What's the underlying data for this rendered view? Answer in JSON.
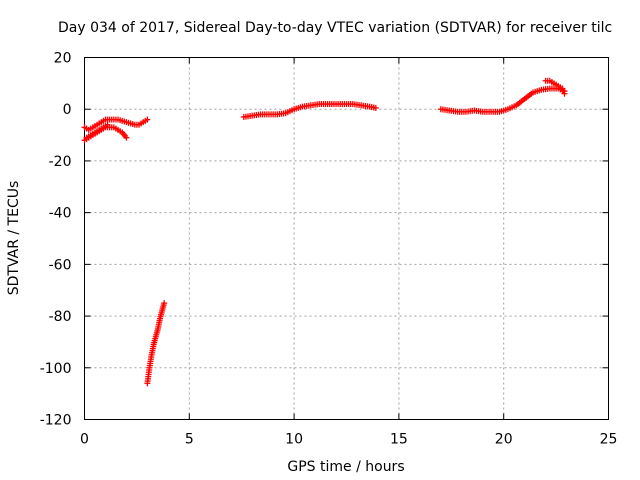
{
  "chart_data": {
    "type": "scatter",
    "title": "Day 034 of 2017, Sidereal Day-to-day VTEC variation (SDTVAR) for receiver tilc",
    "xlabel": "GPS time / hours",
    "ylabel": "SDTVAR / TECUs",
    "xlim": [
      0,
      25
    ],
    "ylim": [
      -120,
      20
    ],
    "xticks": [
      0,
      5,
      10,
      15,
      20,
      25
    ],
    "yticks": [
      -120,
      -100,
      -80,
      -60,
      -40,
      -20,
      0,
      20
    ],
    "grid": true,
    "marker": "plus",
    "color": "#ff0000",
    "series": [
      {
        "x": [
          0.0,
          0.2,
          0.4,
          0.6,
          0.8,
          1.0,
          1.2,
          1.4,
          1.6,
          1.8,
          2.0,
          2.2,
          2.4,
          2.6,
          2.8,
          3.0
        ],
        "y": [
          -7,
          -8,
          -7,
          -6,
          -5,
          -4,
          -4,
          -4,
          -4,
          -4.5,
          -5,
          -5.5,
          -6,
          -6,
          -5,
          -4
        ]
      },
      {
        "x": [
          0.0,
          0.2,
          0.4,
          0.6,
          0.8,
          1.0,
          1.2,
          1.4,
          1.6,
          1.8,
          2.0
        ],
        "y": [
          -12,
          -11,
          -10,
          -9,
          -8,
          -7,
          -7,
          -7,
          -8,
          -9,
          -11
        ]
      },
      {
        "x": [
          0.1,
          0.3,
          0.5,
          0.7,
          0.9,
          1.1
        ],
        "y": [
          -11,
          -10,
          -9,
          -8,
          -7,
          -6
        ]
      },
      {
        "x": [
          3.0,
          3.1,
          3.2,
          3.3,
          3.4,
          3.5,
          3.6,
          3.7,
          3.8
        ],
        "y": [
          -106,
          -100,
          -95,
          -91,
          -88,
          -85,
          -81,
          -78,
          -75
        ]
      },
      {
        "x": [
          7.6,
          8.0,
          8.4,
          8.8,
          9.2,
          9.6,
          10.0,
          10.4,
          10.8,
          11.2,
          11.6,
          12.0,
          12.4,
          12.8,
          13.2,
          13.6,
          13.9
        ],
        "y": [
          -3,
          -2.5,
          -2,
          -2,
          -2,
          -1.5,
          0,
          1,
          1.5,
          2,
          2,
          2,
          2,
          2,
          1.5,
          1,
          0.5
        ]
      },
      {
        "x": [
          17.0,
          17.4,
          17.8,
          18.2,
          18.6,
          19.0,
          19.4,
          19.8,
          20.2,
          20.6,
          21.0,
          21.4,
          21.8,
          22.2,
          22.6,
          22.9
        ],
        "y": [
          0,
          -0.5,
          -1,
          -1,
          -0.5,
          -1,
          -1,
          -1,
          0,
          1.5,
          4,
          6.5,
          7.5,
          8,
          8,
          7
        ]
      },
      {
        "x": [
          22.0,
          22.2,
          22.4,
          22.6,
          22.8,
          22.9
        ],
        "y": [
          11,
          11,
          10,
          9,
          8,
          6
        ]
      }
    ]
  }
}
